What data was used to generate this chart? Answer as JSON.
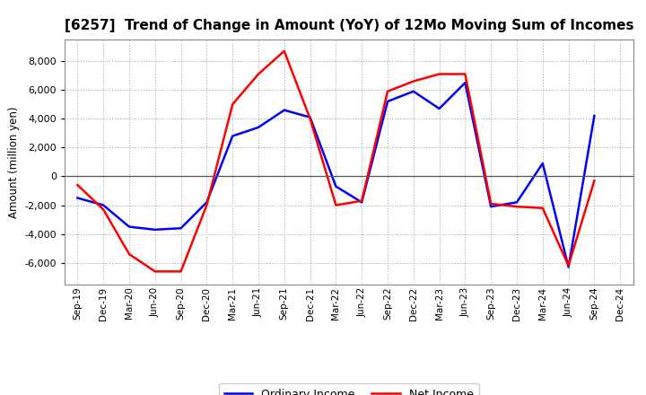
{
  "title": "[6257]  Trend of Change in Amount (YoY) of 12Mo Moving Sum of Incomes",
  "ylabel": "Amount (million yen)",
  "x_labels": [
    "Sep-19",
    "Dec-19",
    "Mar-20",
    "Jun-20",
    "Sep-20",
    "Dec-20",
    "Mar-21",
    "Jun-21",
    "Sep-21",
    "Dec-21",
    "Mar-22",
    "Jun-22",
    "Sep-22",
    "Dec-22",
    "Mar-23",
    "Jun-23",
    "Sep-23",
    "Dec-23",
    "Mar-24",
    "Jun-24",
    "Sep-24",
    "Dec-24"
  ],
  "ordinary_income": [
    -1500,
    -2000,
    -3500,
    -3700,
    -3600,
    -1800,
    2800,
    3400,
    4600,
    4100,
    -700,
    -1800,
    5200,
    5900,
    4700,
    6500,
    -2100,
    -1800,
    900,
    -6300,
    4200,
    null
  ],
  "net_income": [
    -600,
    -2300,
    -5400,
    -6600,
    -6600,
    -2000,
    5000,
    7100,
    8700,
    4000,
    -2000,
    -1700,
    5900,
    6600,
    7100,
    7100,
    -1900,
    -2100,
    -2200,
    -6200,
    -300,
    null
  ],
  "ordinary_color": "#0000ff",
  "net_color": "#ff0000",
  "ylim": [
    -7500,
    9500
  ],
  "yticks": [
    -6000,
    -4000,
    -2000,
    0,
    2000,
    4000,
    6000,
    8000
  ],
  "background_color": "#ffffff",
  "grid_color": "#999999"
}
